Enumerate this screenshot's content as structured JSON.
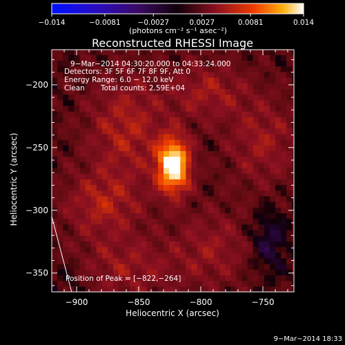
{
  "chart_data": {
    "type": "heatmap",
    "title": "Reconstructed RHESSI Image",
    "xlabel": "Heliocentric X (arcsec)",
    "ylabel": "Heliocentric Y (arcsec)",
    "xlim": [
      -920,
      -725
    ],
    "ylim": [
      -365,
      -172
    ],
    "xticks": [
      -900,
      -850,
      -800,
      -750
    ],
    "yticks": [
      -200,
      -250,
      -300,
      -350
    ],
    "xtick_labels": [
      "−900",
      "−850",
      "−800",
      "−750"
    ],
    "ytick_labels": [
      "−200",
      "−250",
      "−300",
      "−350"
    ],
    "colorbar": {
      "min": -0.014,
      "max": 0.014,
      "ticks": [
        -0.014,
        -0.0081,
        -0.0027,
        0.0027,
        0.0081,
        0.014
      ],
      "tick_labels": [
        "−0.014",
        "−0.0081",
        "−0.0027",
        "0.0027",
        "0.0081",
        "0.014"
      ],
      "unit_label": "(photons cm⁻² s⁻¹ asec⁻²)"
    },
    "annotations": {
      "line1": "9−Mar−2014 04:30:20.000 to 04:33:24.000",
      "line2": "Detectors: 3F 5F 6F 7F 8F 9F, Att 0",
      "line3": "Energy Range: 6.0 − 12.0 keV",
      "line4_a": "Clean",
      "line4_b": "Total counts: 2.59E+04",
      "peak": "Position of Peak = [−822,−264]"
    },
    "peak": {
      "x": -822,
      "y": -264,
      "value": 0.014
    },
    "sources": [
      {
        "x": -822,
        "y": -264,
        "sx": 9,
        "sy": 15,
        "amp": 0.014
      },
      {
        "x": -860,
        "y": -235,
        "sx": 22,
        "sy": 30,
        "amp": 0.0042
      },
      {
        "x": -880,
        "y": -295,
        "sx": 22,
        "sy": 18,
        "amp": 0.004
      },
      {
        "x": -860,
        "y": -345,
        "sx": 30,
        "sy": 18,
        "amp": 0.0032
      },
      {
        "x": -795,
        "y": -205,
        "sx": 22,
        "sy": 16,
        "amp": 0.0036
      },
      {
        "x": -750,
        "y": -245,
        "sx": 20,
        "sy": 25,
        "amp": 0.0034
      },
      {
        "x": -790,
        "y": -330,
        "sx": 22,
        "sy": 22,
        "amp": 0.003
      },
      {
        "x": -745,
        "y": -325,
        "sx": 10,
        "sy": 18,
        "amp": -0.0035
      },
      {
        "x": -905,
        "y": -355,
        "sx": 12,
        "sy": 12,
        "amp": -0.0015
      }
    ],
    "baseline": 0.0013,
    "limb_line": [
      [
        -920,
        -305
      ],
      [
        -904,
        -365
      ]
    ]
  },
  "timestamp": "9−Mar−2014 18:33"
}
